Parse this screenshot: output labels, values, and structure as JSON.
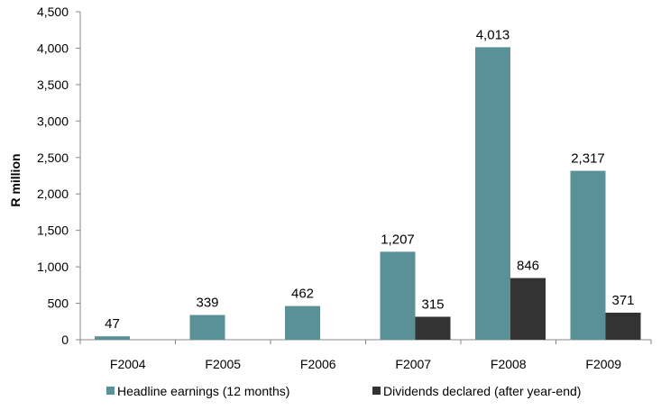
{
  "chart_data": {
    "type": "bar",
    "title": "",
    "xlabel": "",
    "ylabel": "R million",
    "ylim": [
      0,
      4500
    ],
    "yticks": [
      0,
      500,
      1000,
      1500,
      2000,
      2500,
      3000,
      3500,
      4000,
      4500
    ],
    "ytick_labels": [
      "0",
      "500",
      "1,000",
      "1,500",
      "2,000",
      "2,500",
      "3,000",
      "3,500",
      "4,000",
      "4,500"
    ],
    "grid": false,
    "legend_position": "bottom",
    "categories": [
      "F2004",
      "F2005",
      "F2006",
      "F2007",
      "F2008",
      "F2009"
    ],
    "series": [
      {
        "name": "Headline earnings (12 months)",
        "color": "#5a9097",
        "values": [
          47,
          339,
          462,
          1207,
          4013,
          2317
        ],
        "labels": [
          "47",
          "339",
          "462",
          "1,207",
          "4,013",
          "2,317"
        ]
      },
      {
        "name": "Dividends declared (after year-end)",
        "color": "#333333",
        "values": [
          null,
          null,
          null,
          315,
          846,
          371
        ],
        "labels": [
          "",
          "",
          "",
          "315",
          "846",
          "371"
        ]
      }
    ]
  }
}
